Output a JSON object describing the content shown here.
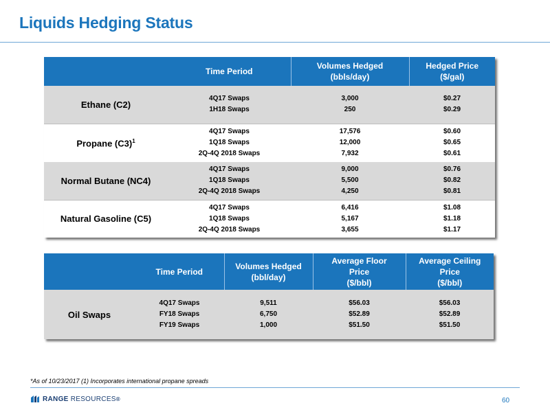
{
  "title": "Liquids Hedging Status",
  "liquids_table": {
    "headers": {
      "period": "Time Period",
      "volumes_l1": "Volumes Hedged",
      "volumes_l2": "(bbls/day)",
      "price_l1": "Hedged Price",
      "price_l2": "($/gal)"
    },
    "rows": [
      {
        "product": "Ethane (C2)",
        "sup": "",
        "periods": [
          "4Q17 Swaps",
          "1H18 Swaps"
        ],
        "volumes": [
          "3,000",
          "250"
        ],
        "prices": [
          "$0.27",
          "$0.29"
        ]
      },
      {
        "product": "Propane (C3)",
        "sup": "1",
        "periods": [
          "4Q17 Swaps",
          "1Q18 Swaps",
          "2Q-4Q 2018 Swaps"
        ],
        "volumes": [
          "17,576",
          "12,000",
          "7,932"
        ],
        "prices": [
          "$0.60",
          "$0.65",
          "$0.61"
        ]
      },
      {
        "product": "Normal Butane (NC4)",
        "sup": "",
        "periods": [
          "4Q17 Swaps",
          "1Q18 Swaps",
          "2Q-4Q 2018 Swaps"
        ],
        "volumes": [
          "9,000",
          "5,500",
          "4,250"
        ],
        "prices": [
          "$0.76",
          "$0.82",
          "$0.81"
        ]
      },
      {
        "product": "Natural Gasoline (C5)",
        "sup": "",
        "periods": [
          "4Q17 Swaps",
          "1Q18 Swaps",
          "2Q-4Q 2018 Swaps"
        ],
        "volumes": [
          "6,416",
          "5,167",
          "3,655"
        ],
        "prices": [
          "$1.08",
          "$1.18",
          "$1.17"
        ]
      }
    ]
  },
  "oil_table": {
    "headers": {
      "period": "Time Period",
      "volumes_l1": "Volumes Hedged",
      "volumes_l2": "(bbl/day)",
      "floor_l1": "Average Floor",
      "floor_l2": "Price",
      "floor_l3": "($/bbl)",
      "ceiling_l1": "Average Ceiling",
      "ceiling_l2": "Price",
      "ceiling_l3": "($/bbl)"
    },
    "row": {
      "product": "Oil Swaps",
      "periods": [
        "4Q17 Swaps",
        "FY18 Swaps",
        "FY19 Swaps"
      ],
      "volumes": [
        "9,511",
        "6,750",
        "1,000"
      ],
      "floors": [
        "$56.03",
        "$52.89",
        "$51.50"
      ],
      "ceilings": [
        "$56.03",
        "$52.89",
        "$51.50"
      ]
    }
  },
  "footnote": "*As of 10/23/2017 (1) Incorporates international propane spreads",
  "logo": {
    "bold": "RANGE",
    "light": "RESOURCES",
    "mark": "®"
  },
  "page_number": "60",
  "colors": {
    "accent": "#1b75bc",
    "shade": "#d9d9d9"
  }
}
